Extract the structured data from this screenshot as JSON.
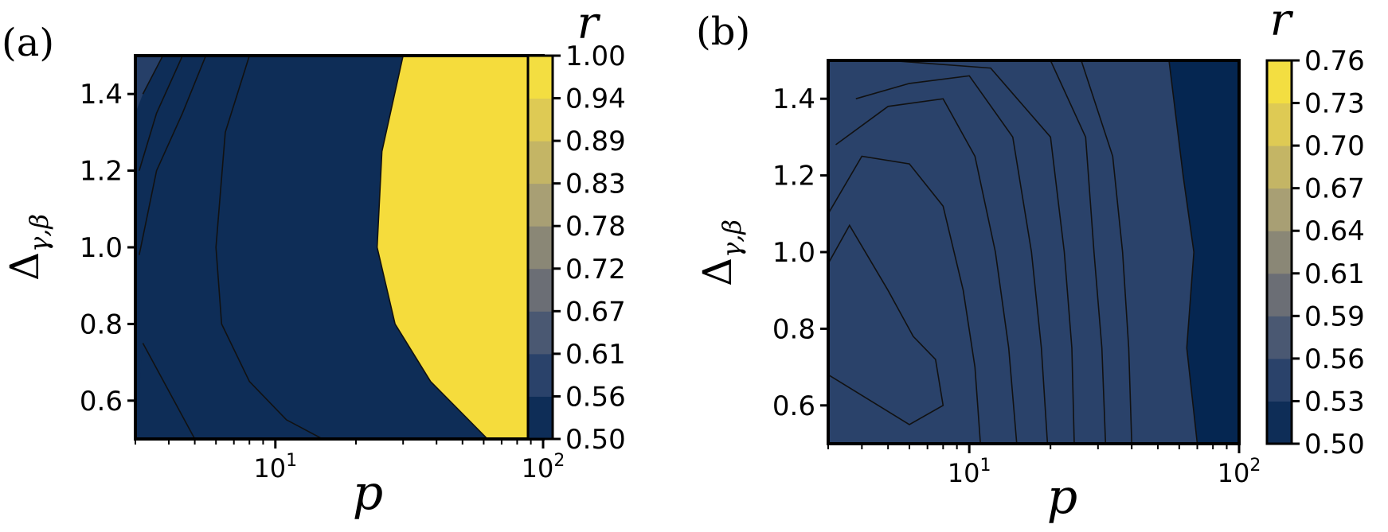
{
  "chart_data": [
    {
      "panel_label": "(a)",
      "type": "heatmap",
      "style": "filled-contour",
      "xlabel": "p",
      "ylabel": "Δ",
      "ylabel_sub": "γ,β",
      "xscale": "log",
      "xlim": [
        3,
        100
      ],
      "ylim": [
        0.5,
        1.5
      ],
      "x_ticks": [
        {
          "value": 10,
          "base": "10",
          "exp": "1"
        },
        {
          "value": 100,
          "base": "10",
          "exp": "2"
        }
      ],
      "x_minor_ticks": [
        3,
        4,
        5,
        6,
        7,
        8,
        9,
        20,
        30,
        40,
        50,
        60,
        70,
        80,
        90
      ],
      "y_ticks": [
        "0.6",
        "0.8",
        "1.0",
        "1.2",
        "1.4"
      ],
      "colorbar": {
        "label": "r",
        "levels": [
          0.5,
          0.56,
          0.61,
          0.67,
          0.72,
          0.78,
          0.83,
          0.89,
          0.94,
          1.0
        ],
        "tick_labels": [
          "0.50",
          "0.56",
          "0.61",
          "0.67",
          "0.72",
          "0.78",
          "0.83",
          "0.89",
          "0.94",
          "1.00"
        ]
      },
      "contours": [
        {
          "level": 0.83,
          "points": [
            [
              3.2,
              0.75
            ],
            [
              5,
              0.5
            ]
          ]
        },
        {
          "level": 0.89,
          "points": [
            [
              8,
              1.5
            ],
            [
              6.5,
              1.3
            ],
            [
              6,
              1.0
            ],
            [
              6.3,
              0.8
            ],
            [
              8,
              0.65
            ],
            [
              11,
              0.55
            ],
            [
              15,
              0.5
            ]
          ]
        },
        {
          "level": 0.94,
          "points": [
            [
              30,
              1.5
            ],
            [
              25,
              1.25
            ],
            [
              24,
              1.0
            ],
            [
              28,
              0.8
            ],
            [
              38,
              0.65
            ],
            [
              62,
              0.5
            ]
          ]
        },
        {
          "level": 0.78,
          "points": [
            [
              5.5,
              1.5
            ],
            [
              4.5,
              1.35
            ],
            [
              3.6,
              1.2
            ],
            [
              3.1,
              0.98
            ]
          ]
        },
        {
          "level": 0.72,
          "points": [
            [
              4.5,
              1.5
            ],
            [
              3.6,
              1.35
            ],
            [
              3.1,
              1.2
            ]
          ]
        },
        {
          "level": 0.67,
          "points": [
            [
              3.8,
              1.5
            ],
            [
              3.2,
              1.4
            ]
          ]
        }
      ]
    },
    {
      "panel_label": "(b)",
      "type": "heatmap",
      "style": "filled-contour",
      "xlabel": "p",
      "ylabel": "Δ",
      "ylabel_sub": "γ,β",
      "xscale": "log",
      "xlim": [
        3,
        100
      ],
      "ylim": [
        0.5,
        1.5
      ],
      "x_ticks": [
        {
          "value": 10,
          "base": "10",
          "exp": "1"
        },
        {
          "value": 100,
          "base": "10",
          "exp": "2"
        }
      ],
      "x_minor_ticks": [
        3,
        4,
        5,
        6,
        7,
        8,
        9,
        20,
        30,
        40,
        50,
        60,
        70,
        80,
        90
      ],
      "y_ticks": [
        "0.6",
        "0.8",
        "1.0",
        "1.2",
        "1.4"
      ],
      "colorbar": {
        "label": "r",
        "levels": [
          0.5,
          0.53,
          0.56,
          0.59,
          0.61,
          0.64,
          0.67,
          0.7,
          0.73,
          0.76
        ],
        "tick_labels": [
          "0.50",
          "0.53",
          "0.56",
          "0.59",
          "0.61",
          "0.64",
          "0.67",
          "0.70",
          "0.73",
          "0.76"
        ]
      },
      "contours": [
        {
          "level": 0.73,
          "points": [
            [
              3,
              0.97
            ],
            [
              3.6,
              1.07
            ],
            [
              5,
              0.9
            ],
            [
              6.2,
              0.78
            ],
            [
              7.5,
              0.72
            ],
            [
              8,
              0.6
            ],
            [
              6,
              0.55
            ],
            [
              3,
              0.68
            ]
          ]
        },
        {
          "level": 0.7,
          "points": [
            [
              3,
              1.1
            ],
            [
              4,
              1.25
            ],
            [
              6,
              1.23
            ],
            [
              8,
              1.12
            ],
            [
              9.5,
              0.9
            ],
            [
              10.5,
              0.7
            ],
            [
              11,
              0.5
            ]
          ]
        },
        {
          "level": 0.67,
          "points": [
            [
              3.2,
              1.28
            ],
            [
              5,
              1.38
            ],
            [
              8,
              1.4
            ],
            [
              10.5,
              1.25
            ],
            [
              12.5,
              1.0
            ],
            [
              14,
              0.75
            ],
            [
              15,
              0.5
            ]
          ]
        },
        {
          "level": 0.64,
          "points": [
            [
              3.8,
              1.4
            ],
            [
              6,
              1.44
            ],
            [
              10,
              1.46
            ],
            [
              14.5,
              1.3
            ],
            [
              17,
              1.0
            ],
            [
              18.5,
              0.75
            ],
            [
              19.5,
              0.5
            ]
          ]
        },
        {
          "level": 0.61,
          "points": [
            [
              5,
              1.5
            ],
            [
              12,
              1.48
            ],
            [
              20,
              1.3
            ],
            [
              22.5,
              1.0
            ],
            [
              24,
              0.75
            ],
            [
              24.5,
              0.5
            ]
          ]
        },
        {
          "level": 0.59,
          "points": [
            [
              8,
              1.5
            ],
            [
              20,
              1.5
            ],
            [
              27,
              1.3
            ],
            [
              29,
              1.0
            ],
            [
              31,
              0.75
            ],
            [
              32,
              0.5
            ]
          ]
        },
        {
          "level": 0.56,
          "points": [
            [
              26,
              1.5
            ],
            [
              34,
              1.25
            ],
            [
              37,
              1.0
            ],
            [
              39,
              0.75
            ],
            [
              40,
              0.5
            ]
          ]
        },
        {
          "level": 0.53,
          "points": [
            [
              55,
              1.5
            ],
            [
              62,
              1.2
            ],
            [
              68,
              1.0
            ],
            [
              64,
              0.75
            ],
            [
              70,
              0.5
            ]
          ]
        }
      ]
    }
  ]
}
